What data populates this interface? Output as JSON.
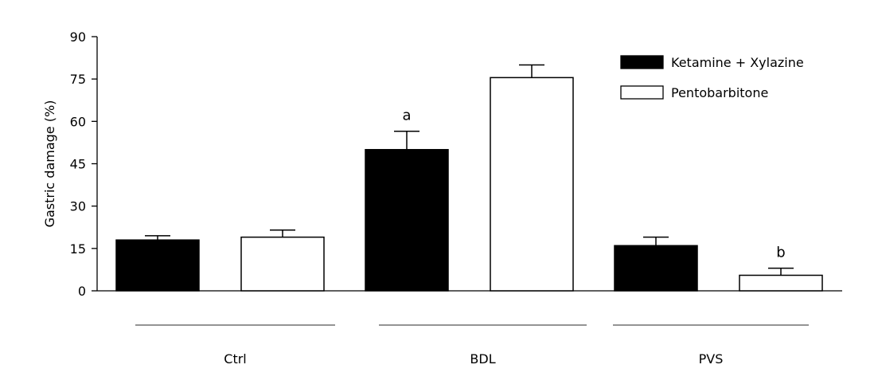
{
  "chart_data": {
    "type": "bar",
    "ylabel": "Gastric damage (%)",
    "ylim": [
      0,
      90
    ],
    "yticks": [
      0,
      15,
      30,
      45,
      60,
      75,
      90
    ],
    "categories": [
      "Ctrl",
      "BDL",
      "PVS"
    ],
    "series": [
      {
        "name": "Ketamine + Xylazine",
        "fill": "#000000",
        "values": [
          18,
          50,
          16
        ],
        "errors": [
          1.5,
          6.5,
          3
        ]
      },
      {
        "name": "Pentobarbitone",
        "fill": "#ffffff",
        "values": [
          19,
          75.5,
          5.5
        ],
        "errors": [
          2.5,
          4.5,
          2.5
        ]
      }
    ],
    "annotations": [
      {
        "text": "a",
        "category": "BDL",
        "series": "Ketamine + Xylazine"
      },
      {
        "text": "b",
        "category": "PVS",
        "series": "Pentobarbitone"
      }
    ],
    "legend_position": "top-right",
    "grid": false
  }
}
